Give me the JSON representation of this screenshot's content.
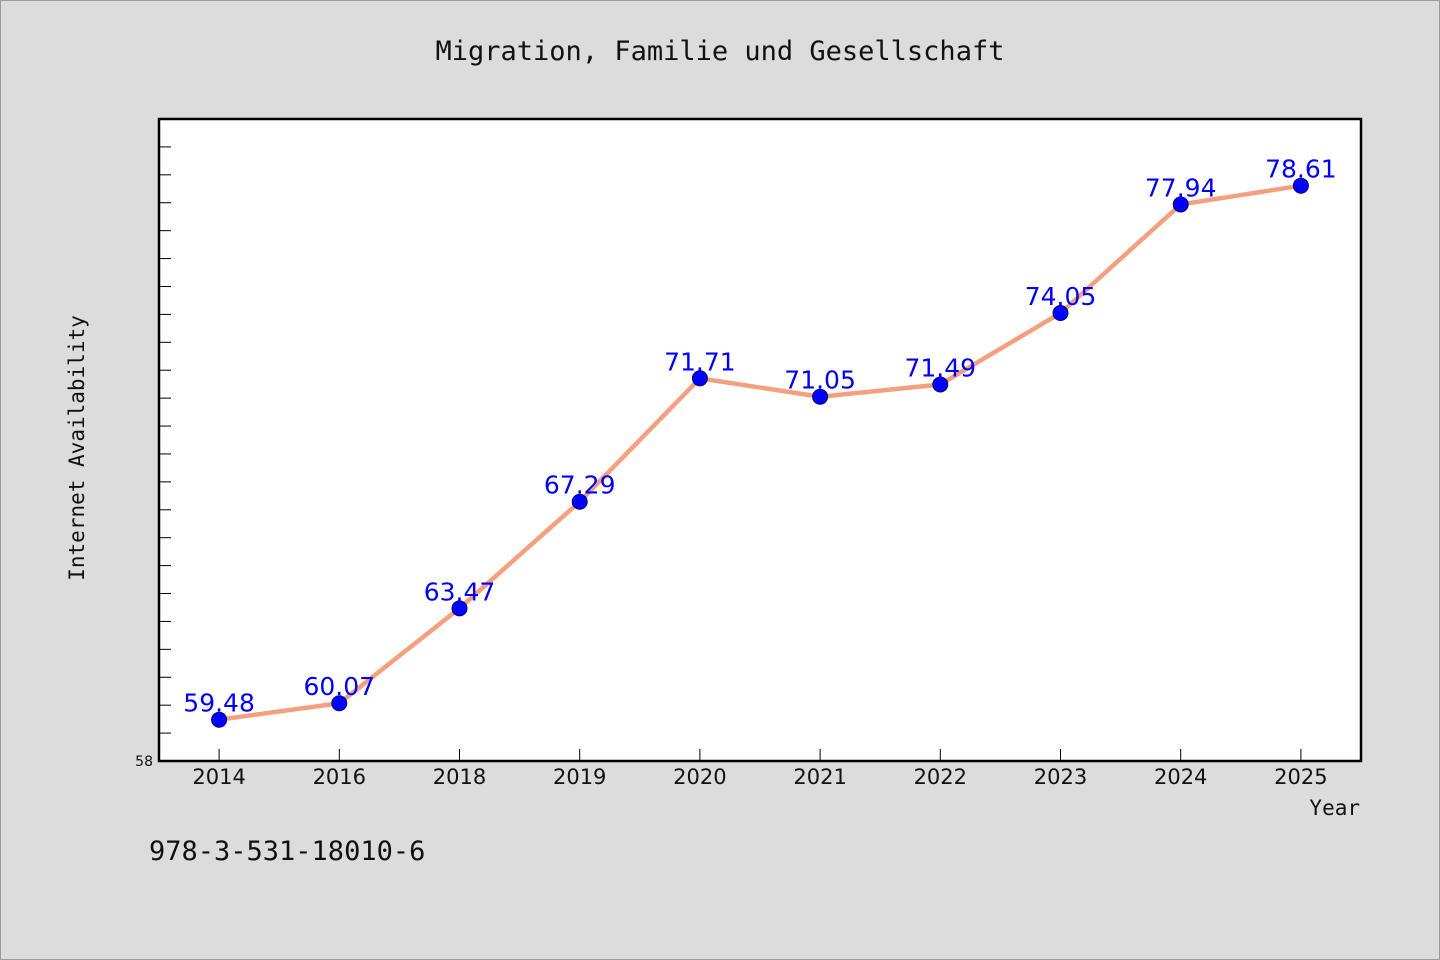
{
  "chart_data": {
    "type": "line",
    "title": "Migration, Familie und Gesellschaft",
    "xlabel": "Year",
    "ylabel": "Internet Availability",
    "categories": [
      "2014",
      "2016",
      "2018",
      "2019",
      "2020",
      "2021",
      "2022",
      "2023",
      "2024",
      "2025"
    ],
    "series": [
      {
        "values": [
          59.48,
          60.07,
          63.47,
          67.29,
          71.71,
          71.05,
          71.49,
          74.05,
          77.94,
          78.61
        ],
        "color": "#f4a07f",
        "marker_color": "#0000ff"
      }
    ],
    "data_labels": [
      "59.48",
      "60.07",
      "63.47",
      "67.29",
      "71.71",
      "71.05",
      "71.49",
      "74.05",
      "77.94",
      "78.61"
    ],
    "ylim": [
      58,
      81
    ],
    "yticks_labeled": [
      "58"
    ],
    "y_minor_tick_step": 1,
    "grid": false,
    "label_color": "#0000ff"
  },
  "footer": {
    "isbn": "978-3-531-18010-6"
  }
}
